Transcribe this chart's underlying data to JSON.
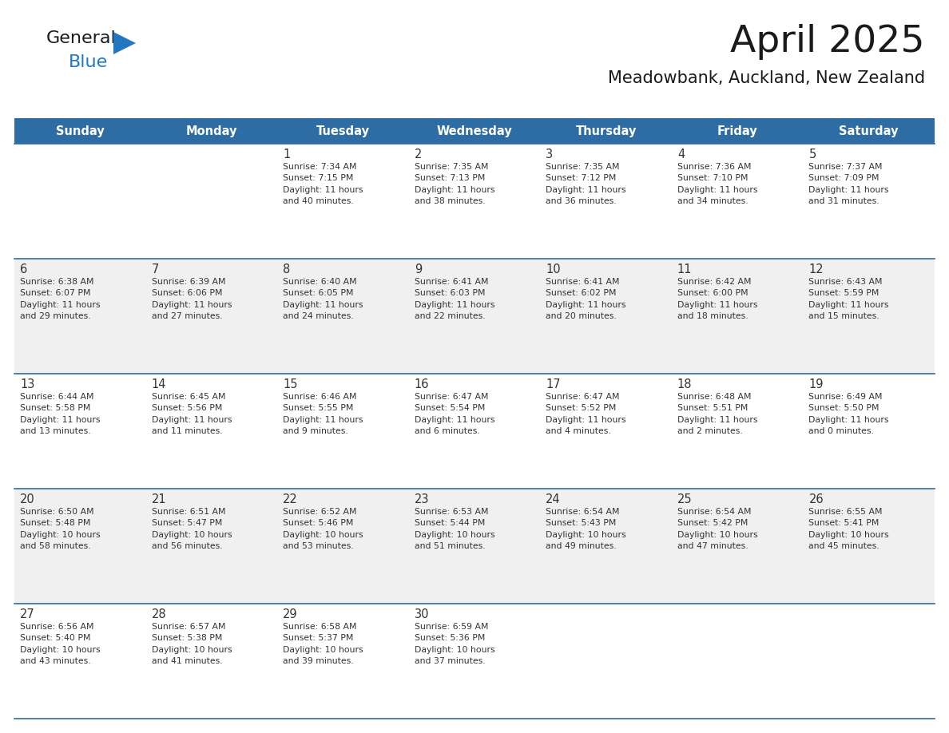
{
  "title": "April 2025",
  "subtitle": "Meadowbank, Auckland, New Zealand",
  "header_bg": "#2E6DA4",
  "header_text": "#FFFFFF",
  "row_bg_odd": "#F0F0F0",
  "row_bg_even": "#FFFFFF",
  "day_headers": [
    "Sunday",
    "Monday",
    "Tuesday",
    "Wednesday",
    "Thursday",
    "Friday",
    "Saturday"
  ],
  "cell_text_color": "#333333",
  "date_color": "#333333",
  "header_line_color": "#2E6DA4",
  "weeks": [
    [
      {
        "day": "",
        "text": ""
      },
      {
        "day": "",
        "text": ""
      },
      {
        "day": "1",
        "text": "Sunrise: 7:34 AM\nSunset: 7:15 PM\nDaylight: 11 hours\nand 40 minutes."
      },
      {
        "day": "2",
        "text": "Sunrise: 7:35 AM\nSunset: 7:13 PM\nDaylight: 11 hours\nand 38 minutes."
      },
      {
        "day": "3",
        "text": "Sunrise: 7:35 AM\nSunset: 7:12 PM\nDaylight: 11 hours\nand 36 minutes."
      },
      {
        "day": "4",
        "text": "Sunrise: 7:36 AM\nSunset: 7:10 PM\nDaylight: 11 hours\nand 34 minutes."
      },
      {
        "day": "5",
        "text": "Sunrise: 7:37 AM\nSunset: 7:09 PM\nDaylight: 11 hours\nand 31 minutes."
      }
    ],
    [
      {
        "day": "6",
        "text": "Sunrise: 6:38 AM\nSunset: 6:07 PM\nDaylight: 11 hours\nand 29 minutes."
      },
      {
        "day": "7",
        "text": "Sunrise: 6:39 AM\nSunset: 6:06 PM\nDaylight: 11 hours\nand 27 minutes."
      },
      {
        "day": "8",
        "text": "Sunrise: 6:40 AM\nSunset: 6:05 PM\nDaylight: 11 hours\nand 24 minutes."
      },
      {
        "day": "9",
        "text": "Sunrise: 6:41 AM\nSunset: 6:03 PM\nDaylight: 11 hours\nand 22 minutes."
      },
      {
        "day": "10",
        "text": "Sunrise: 6:41 AM\nSunset: 6:02 PM\nDaylight: 11 hours\nand 20 minutes."
      },
      {
        "day": "11",
        "text": "Sunrise: 6:42 AM\nSunset: 6:00 PM\nDaylight: 11 hours\nand 18 minutes."
      },
      {
        "day": "12",
        "text": "Sunrise: 6:43 AM\nSunset: 5:59 PM\nDaylight: 11 hours\nand 15 minutes."
      }
    ],
    [
      {
        "day": "13",
        "text": "Sunrise: 6:44 AM\nSunset: 5:58 PM\nDaylight: 11 hours\nand 13 minutes."
      },
      {
        "day": "14",
        "text": "Sunrise: 6:45 AM\nSunset: 5:56 PM\nDaylight: 11 hours\nand 11 minutes."
      },
      {
        "day": "15",
        "text": "Sunrise: 6:46 AM\nSunset: 5:55 PM\nDaylight: 11 hours\nand 9 minutes."
      },
      {
        "day": "16",
        "text": "Sunrise: 6:47 AM\nSunset: 5:54 PM\nDaylight: 11 hours\nand 6 minutes."
      },
      {
        "day": "17",
        "text": "Sunrise: 6:47 AM\nSunset: 5:52 PM\nDaylight: 11 hours\nand 4 minutes."
      },
      {
        "day": "18",
        "text": "Sunrise: 6:48 AM\nSunset: 5:51 PM\nDaylight: 11 hours\nand 2 minutes."
      },
      {
        "day": "19",
        "text": "Sunrise: 6:49 AM\nSunset: 5:50 PM\nDaylight: 11 hours\nand 0 minutes."
      }
    ],
    [
      {
        "day": "20",
        "text": "Sunrise: 6:50 AM\nSunset: 5:48 PM\nDaylight: 10 hours\nand 58 minutes."
      },
      {
        "day": "21",
        "text": "Sunrise: 6:51 AM\nSunset: 5:47 PM\nDaylight: 10 hours\nand 56 minutes."
      },
      {
        "day": "22",
        "text": "Sunrise: 6:52 AM\nSunset: 5:46 PM\nDaylight: 10 hours\nand 53 minutes."
      },
      {
        "day": "23",
        "text": "Sunrise: 6:53 AM\nSunset: 5:44 PM\nDaylight: 10 hours\nand 51 minutes."
      },
      {
        "day": "24",
        "text": "Sunrise: 6:54 AM\nSunset: 5:43 PM\nDaylight: 10 hours\nand 49 minutes."
      },
      {
        "day": "25",
        "text": "Sunrise: 6:54 AM\nSunset: 5:42 PM\nDaylight: 10 hours\nand 47 minutes."
      },
      {
        "day": "26",
        "text": "Sunrise: 6:55 AM\nSunset: 5:41 PM\nDaylight: 10 hours\nand 45 minutes."
      }
    ],
    [
      {
        "day": "27",
        "text": "Sunrise: 6:56 AM\nSunset: 5:40 PM\nDaylight: 10 hours\nand 43 minutes."
      },
      {
        "day": "28",
        "text": "Sunrise: 6:57 AM\nSunset: 5:38 PM\nDaylight: 10 hours\nand 41 minutes."
      },
      {
        "day": "29",
        "text": "Sunrise: 6:58 AM\nSunset: 5:37 PM\nDaylight: 10 hours\nand 39 minutes."
      },
      {
        "day": "30",
        "text": "Sunrise: 6:59 AM\nSunset: 5:36 PM\nDaylight: 10 hours\nand 37 minutes."
      },
      {
        "day": "",
        "text": ""
      },
      {
        "day": "",
        "text": ""
      },
      {
        "day": "",
        "text": ""
      }
    ]
  ],
  "logo_text1": "General",
  "logo_text2": "Blue",
  "logo_text1_color": "#1a1a1a",
  "logo_text2_color": "#2278BF",
  "logo_triangle_color": "#2278BF",
  "title_fontsize": 34,
  "subtitle_fontsize": 15,
  "day_header_fontsize": 10.5,
  "day_num_fontsize": 10.5,
  "cell_text_fontsize": 7.8
}
